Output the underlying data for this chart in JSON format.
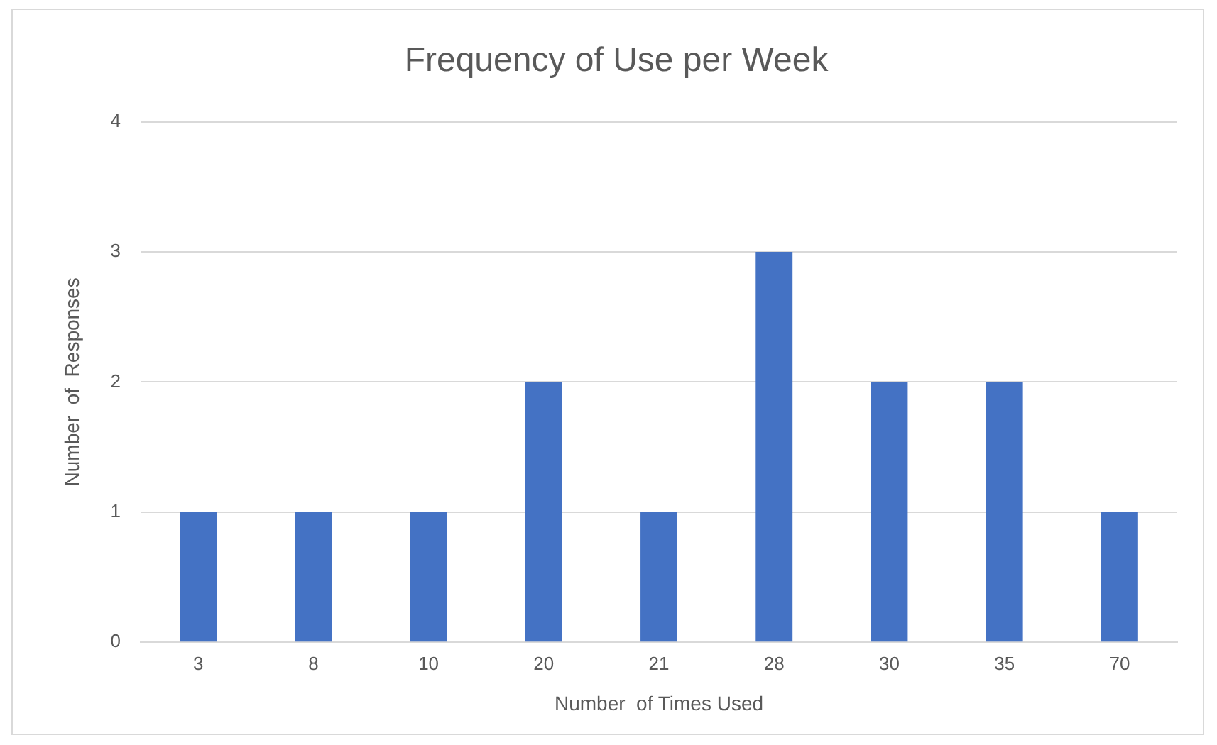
{
  "chart_data": {
    "type": "bar",
    "title": "Frequency of Use per Week",
    "xlabel": "Number  of Times Used",
    "ylabel": "Number  of  Responses",
    "categories": [
      "3",
      "8",
      "10",
      "20",
      "21",
      "28",
      "30",
      "35",
      "70"
    ],
    "values": [
      1,
      1,
      1,
      2,
      1,
      3,
      2,
      2,
      1
    ],
    "color": "#4472c4",
    "ylim": [
      0,
      4
    ],
    "yticks": [
      0,
      1,
      2,
      3,
      4
    ],
    "grid": "y",
    "legend": false
  }
}
